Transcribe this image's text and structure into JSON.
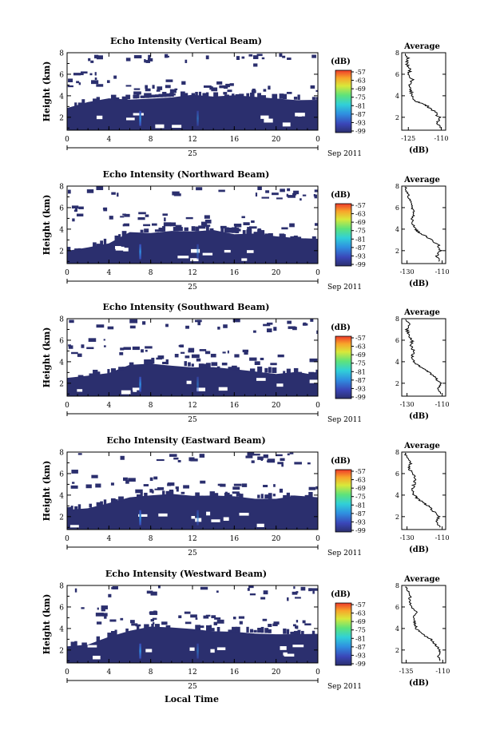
{
  "figure": {
    "x_axis_title": "Local Time",
    "date_day_label": "25",
    "date_month_label": "Sep 2011",
    "colorbar_unit": "(dB)",
    "colorbar_tick_labels": [
      "-57",
      "-63",
      "-69",
      "-75",
      "-81",
      "-87",
      "-93",
      "-99"
    ],
    "avg_title": "Average",
    "avg_xlabel": "(dB)"
  },
  "chart_data": [
    {
      "type": "heatmap",
      "title": "Echo Intensity (Vertical Beam)",
      "ylabel": "Height (km)",
      "xlabel": "Local Time",
      "x_ticks": [
        "0",
        "4",
        "8",
        "12",
        "16",
        "20",
        "0"
      ],
      "y_ticks": [
        "2",
        "4",
        "6",
        "8"
      ],
      "xlim": [
        0,
        24
      ],
      "ylim": [
        0.8,
        8
      ],
      "color_range_db": [
        -99,
        -57
      ],
      "colormap": [
        "#2b2f6e",
        "#3a46b8",
        "#2f8fe0",
        "#30d0d8",
        "#5ee37a",
        "#d9e83a",
        "#f8a42a",
        "#ee3a2a"
      ],
      "cloud_top_km": [
        3.0,
        3.3,
        3.6,
        3.8,
        3.9,
        4.0,
        4.0,
        3.9,
        3.9,
        3.8,
        3.8,
        3.7,
        3.7
      ],
      "cloud_top_times_h": [
        0,
        2,
        4,
        6,
        8,
        10,
        12,
        14,
        16,
        18,
        20,
        22,
        24
      ],
      "bright_streaks_h": [
        7.0,
        12.5
      ],
      "average_profile": {
        "xlim": [
          -128,
          -108
        ],
        "x_ticks": [
          "-125",
          "-110"
        ],
        "y_ticks": [
          "2",
          "4",
          "6",
          "8"
        ],
        "heights_km": [
          1.0,
          1.5,
          2.0,
          2.5,
          3.0,
          3.2,
          3.5,
          4.0,
          4.5,
          5.0,
          5.5,
          6.0,
          6.5,
          7.0,
          7.5,
          8.0
        ],
        "db": [
          -110,
          -112,
          -111,
          -113,
          -116,
          -118,
          -122,
          -123,
          -124,
          -124,
          -123,
          -125,
          -124,
          -126,
          -125,
          -127
        ]
      }
    },
    {
      "type": "heatmap",
      "title": "Echo Intensity (Northward Beam)",
      "ylabel": "Height (km)",
      "xlabel": "Local Time",
      "x_ticks": [
        "0",
        "4",
        "8",
        "12",
        "16",
        "20",
        "0"
      ],
      "y_ticks": [
        "2",
        "4",
        "6",
        "8"
      ],
      "xlim": [
        0,
        24
      ],
      "ylim": [
        0.8,
        8
      ],
      "color_range_db": [
        -99,
        -57
      ],
      "colormap": [
        "#2b2f6e",
        "#3a46b8",
        "#2f8fe0",
        "#30d0d8",
        "#5ee37a",
        "#d9e83a",
        "#f8a42a",
        "#ee3a2a"
      ],
      "cloud_top_km": [
        1.9,
        2.2,
        2.8,
        3.7,
        3.8,
        3.9,
        3.9,
        3.8,
        3.7,
        3.5,
        3.3,
        3.1,
        3.0
      ],
      "cloud_top_times_h": [
        0,
        2,
        4,
        6,
        8,
        10,
        12,
        14,
        16,
        18,
        20,
        22,
        24
      ],
      "bright_streaks_h": [
        7.0,
        12.5
      ],
      "average_profile": {
        "xlim": [
          -133,
          -108
        ],
        "x_ticks": [
          "-130",
          "-110"
        ],
        "y_ticks": [
          "2",
          "4",
          "6",
          "8"
        ],
        "heights_km": [
          1.0,
          1.5,
          2.0,
          2.5,
          3.0,
          3.3,
          3.7,
          4.0,
          4.5,
          5.0,
          5.5,
          6.0,
          6.5,
          7.0,
          7.5,
          8.0
        ],
        "db": [
          -112,
          -113,
          -111,
          -112,
          -116,
          -119,
          -123,
          -125,
          -127,
          -127,
          -126,
          -127,
          -128,
          -129,
          -130,
          -131
        ]
      }
    },
    {
      "type": "heatmap",
      "title": "Echo Intensity (Southward Beam)",
      "ylabel": "Height (km)",
      "xlabel": "Local Time",
      "x_ticks": [
        "0",
        "4",
        "8",
        "12",
        "16",
        "20",
        "0"
      ],
      "y_ticks": [
        "2",
        "4",
        "6",
        "8"
      ],
      "xlim": [
        0,
        24
      ],
      "ylim": [
        0.8,
        8
      ],
      "color_range_db": [
        -99,
        -57
      ],
      "colormap": [
        "#2b2f6e",
        "#3a46b8",
        "#2f8fe0",
        "#30d0d8",
        "#5ee37a",
        "#d9e83a",
        "#f8a42a",
        "#ee3a2a"
      ],
      "cloud_top_km": [
        2.4,
        2.7,
        3.0,
        3.6,
        3.9,
        3.8,
        3.6,
        3.4,
        3.3,
        3.1,
        3.0,
        2.9,
        2.8
      ],
      "cloud_top_times_h": [
        0,
        2,
        4,
        6,
        8,
        10,
        12,
        14,
        16,
        18,
        20,
        22,
        24
      ],
      "bright_streaks_h": [
        7.0,
        12.5
      ],
      "average_profile": {
        "xlim": [
          -133,
          -108
        ],
        "x_ticks": [
          "-130",
          "-110"
        ],
        "y_ticks": [
          "2",
          "4",
          "6",
          "8"
        ],
        "heights_km": [
          1.0,
          1.5,
          2.0,
          2.5,
          3.0,
          3.3,
          3.7,
          4.0,
          4.5,
          5.0,
          5.5,
          6.0,
          6.5,
          7.0,
          7.5,
          8.0
        ],
        "db": [
          -110,
          -112,
          -111,
          -114,
          -117,
          -120,
          -124,
          -126,
          -127,
          -126,
          -128,
          -127,
          -129,
          -130,
          -129,
          -131
        ]
      }
    },
    {
      "type": "heatmap",
      "title": "Echo Intensity (Eastward Beam)",
      "ylabel": "Height (km)",
      "xlabel": "Local Time",
      "x_ticks": [
        "0",
        "4",
        "8",
        "12",
        "16",
        "20",
        "0"
      ],
      "y_ticks": [
        "2",
        "4",
        "6",
        "8"
      ],
      "xlim": [
        0,
        24
      ],
      "ylim": [
        0.8,
        8
      ],
      "color_range_db": [
        -99,
        -57
      ],
      "colormap": [
        "#2b2f6e",
        "#3a46b8",
        "#2f8fe0",
        "#30d0d8",
        "#5ee37a",
        "#d9e83a",
        "#f8a42a",
        "#ee3a2a"
      ],
      "cloud_top_km": [
        2.6,
        2.9,
        3.3,
        3.8,
        4.0,
        4.0,
        3.9,
        3.9,
        3.8,
        3.8,
        3.7,
        3.8,
        3.9
      ],
      "cloud_top_times_h": [
        0,
        2,
        4,
        6,
        8,
        10,
        12,
        14,
        16,
        18,
        20,
        22,
        24
      ],
      "bright_streaks_h": [
        7.0,
        12.5
      ],
      "average_profile": {
        "xlim": [
          -133,
          -108
        ],
        "x_ticks": [
          "-130",
          "-110"
        ],
        "y_ticks": [
          "2",
          "4",
          "6",
          "8"
        ],
        "heights_km": [
          1.0,
          1.5,
          2.0,
          2.5,
          3.0,
          3.3,
          3.7,
          4.0,
          4.5,
          5.0,
          5.5,
          6.0,
          6.5,
          7.0,
          7.5,
          8.0
        ],
        "db": [
          -111,
          -113,
          -112,
          -115,
          -118,
          -121,
          -124,
          -126,
          -127,
          -126,
          -125,
          -127,
          -129,
          -128,
          -130,
          -131
        ]
      }
    },
    {
      "type": "heatmap",
      "title": "Echo Intensity (Westward Beam)",
      "ylabel": "Height (km)",
      "xlabel": "Local Time",
      "x_ticks": [
        "0",
        "4",
        "8",
        "12",
        "16",
        "20",
        "0"
      ],
      "y_ticks": [
        "2",
        "4",
        "6",
        "8"
      ],
      "xlim": [
        0,
        24
      ],
      "ylim": [
        0.8,
        8
      ],
      "color_range_db": [
        -99,
        -57
      ],
      "colormap": [
        "#2b2f6e",
        "#3a46b8",
        "#2f8fe0",
        "#30d0d8",
        "#5ee37a",
        "#d9e83a",
        "#f8a42a",
        "#ee3a2a"
      ],
      "cloud_top_km": [
        2.2,
        2.6,
        3.2,
        3.9,
        4.1,
        4.0,
        3.9,
        3.8,
        3.7,
        3.7,
        3.6,
        3.5,
        3.5
      ],
      "cloud_top_times_h": [
        0,
        2,
        4,
        6,
        8,
        10,
        12,
        14,
        16,
        18,
        20,
        22,
        24
      ],
      "bright_streaks_h": [
        7.0,
        12.5
      ],
      "average_profile": {
        "xlim": [
          -138,
          -108
        ],
        "x_ticks": [
          "-135",
          "-110"
        ],
        "y_ticks": [
          "2",
          "4",
          "6",
          "8"
        ],
        "heights_km": [
          1.0,
          1.5,
          2.0,
          2.5,
          3.0,
          3.3,
          3.7,
          4.0,
          4.5,
          5.0,
          5.5,
          6.0,
          6.5,
          7.0,
          7.5,
          8.0
        ],
        "db": [
          -112,
          -113,
          -112,
          -115,
          -118,
          -122,
          -126,
          -128,
          -129,
          -130,
          -128,
          -131,
          -133,
          -132,
          -134,
          -136
        ]
      }
    }
  ]
}
